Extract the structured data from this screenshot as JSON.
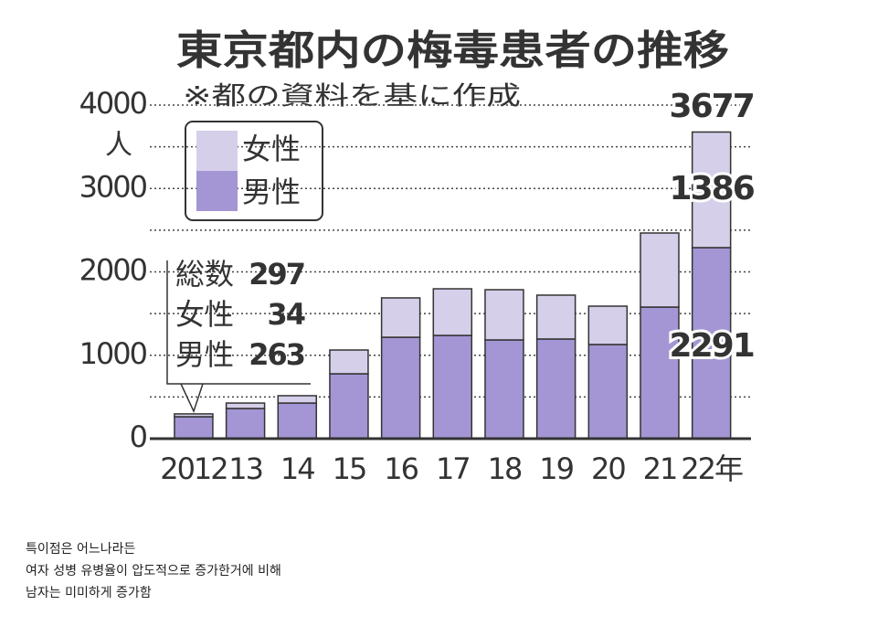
{
  "chart_data": {
    "type": "stacked-bar",
    "title": "東京都内の梅毒患者の推移",
    "subtitle": "※都の資料を基に作成",
    "y_unit": "人",
    "categories": [
      "2012",
      "13",
      "14",
      "15",
      "16",
      "17",
      "18",
      "19",
      "20",
      "21",
      "22年"
    ],
    "series": [
      {
        "name": "男性",
        "color": "#a496d4",
        "values": [
          263,
          362,
          427,
          778,
          1216,
          1238,
          1184,
          1195,
          1129,
          1578,
          2291
        ]
      },
      {
        "name": "女性",
        "color": "#d6cfea",
        "values": [
          34,
          65,
          88,
          285,
          472,
          559,
          602,
          526,
          460,
          888,
          1386
        ]
      }
    ],
    "callout_total": {
      "label": "総数",
      "value": 297
    },
    "last_total": 3677,
    "ylim": [
      0,
      4000
    ],
    "yticks": [
      0,
      1000,
      2000,
      3000,
      4000
    ],
    "grid_lines": [
      500,
      1000,
      1500,
      2000,
      2500,
      3000,
      3500,
      4000
    ],
    "grid": true
  },
  "caption_lines": [
    "특이점은 어느나라든",
    "여자 성병 유병율이 압도적으로 증가한거에 비해",
    "남자는 미미하게 증가함"
  ]
}
